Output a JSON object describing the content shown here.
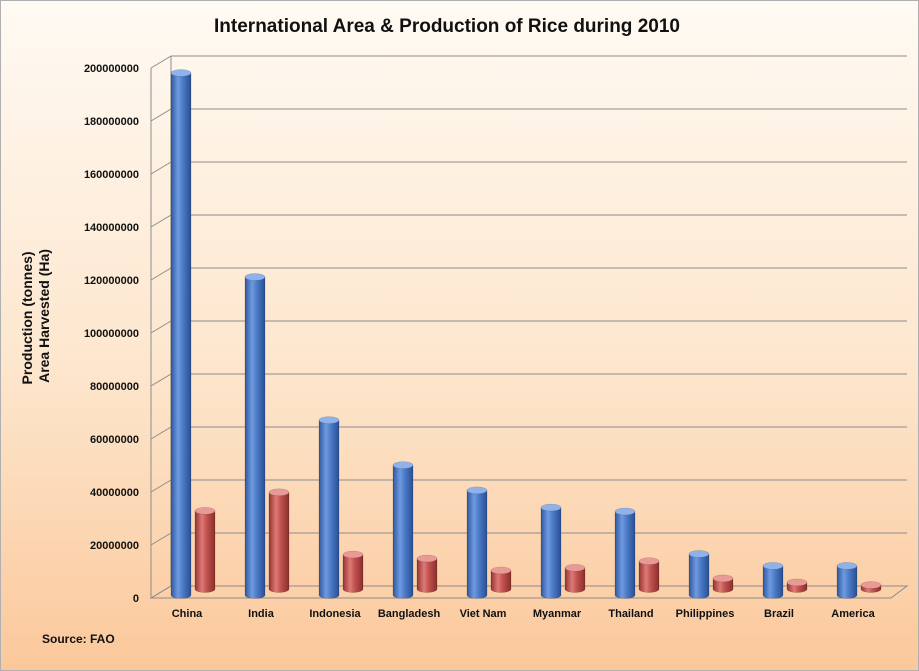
{
  "chart_data": {
    "type": "bar",
    "title": "International Area & Production of Rice during 2010",
    "ylabel_lines": [
      "Production (tonnes)",
      "Area Harvested (Ha)"
    ],
    "categories": [
      "China",
      "India",
      "Indonesia",
      "Bangladesh",
      "Viet Nam",
      "Myanmar",
      "Thailand",
      "Philippines",
      "Brazil",
      "America"
    ],
    "series": [
      {
        "values": [
          197000000,
          120000000,
          66000000,
          49000000,
          39500000,
          33000000,
          31500000,
          15500000,
          11000000,
          11000000
        ]
      },
      {
        "values": [
          29500000,
          36500000,
          13000000,
          11500000,
          7000000,
          8000000,
          10500000,
          4000000,
          2500000,
          1500000
        ]
      }
    ],
    "yticks": [
      "0",
      "20000000",
      "40000000",
      "60000000",
      "80000000",
      "100000000",
      "120000000",
      "140000000",
      "160000000",
      "180000000",
      "200000000"
    ],
    "ylim": [
      0,
      200000000
    ],
    "grid": true,
    "source": "Source: FAO",
    "colors": {
      "series1": "#4a7ac6",
      "series2": "#c0504d",
      "gridline": "#8c8c8c"
    }
  }
}
